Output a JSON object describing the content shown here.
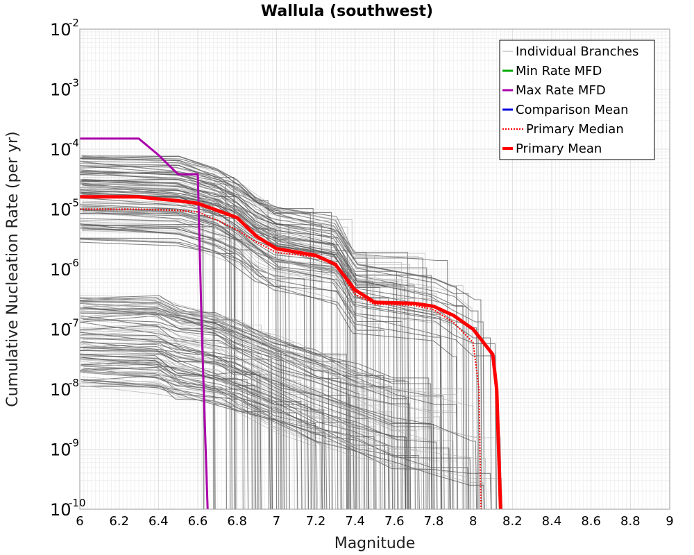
{
  "chart_data": {
    "type": "line",
    "title": "Wallula (southwest)",
    "xlabel": "Magnitude",
    "ylabel": "Cumulative Nucleation Rate (per yr)",
    "xlim": [
      6,
      9
    ],
    "ylim": [
      1e-10,
      0.01
    ],
    "y_scale": "log",
    "grid": true,
    "legend_position": "top-right",
    "x_ticks": [
      "6",
      "6.2",
      "6.4",
      "6.6",
      "6.8",
      "7",
      "7.2",
      "7.4",
      "7.6",
      "7.8",
      "8",
      "8.2",
      "8.4",
      "8.6",
      "8.8",
      "9"
    ],
    "y_ticks": [
      {
        "base": "10",
        "exp": "-2",
        "value": 0.01
      },
      {
        "base": "10",
        "exp": "-3",
        "value": 0.001
      },
      {
        "base": "10",
        "exp": "-4",
        "value": 0.0001
      },
      {
        "base": "10",
        "exp": "-5",
        "value": 1e-05
      },
      {
        "base": "10",
        "exp": "-6",
        "value": 1e-06
      },
      {
        "base": "10",
        "exp": "-7",
        "value": 1e-07
      },
      {
        "base": "10",
        "exp": "-8",
        "value": 1e-08
      },
      {
        "base": "10",
        "exp": "-9",
        "value": 1e-09
      },
      {
        "base": "10",
        "exp": "-10",
        "value": 1e-10
      }
    ],
    "series": [
      {
        "name": "Individual Branches",
        "color": "#aaaaaa",
        "style": "thin",
        "x": [],
        "y": []
      },
      {
        "name": "Min Rate MFD",
        "color": "#00aa00",
        "style": "solid",
        "x": [],
        "y": []
      },
      {
        "name": "Max Rate MFD",
        "color": "#aa00aa",
        "style": "solid",
        "x": [
          6.0,
          6.3,
          6.4,
          6.5,
          6.6,
          6.62,
          6.65
        ],
        "y": [
          0.00015,
          0.00015,
          8e-05,
          3.8e-05,
          3.8e-05,
          1e-07,
          1e-10
        ]
      },
      {
        "name": "Comparison Mean",
        "color": "#0000dd",
        "style": "solid",
        "x": [],
        "y": []
      },
      {
        "name": "Primary Median",
        "color": "#ff0000",
        "style": "dotted",
        "x": [
          6.0,
          6.3,
          6.5,
          6.6,
          6.7,
          6.8,
          6.9,
          7.0,
          7.2,
          7.3,
          7.4,
          7.5,
          7.7,
          7.8,
          7.9,
          8.0,
          8.03,
          8.04
        ],
        "y": [
          1e-05,
          1e-05,
          9.5e-06,
          9e-06,
          6.5e-06,
          4.5e-06,
          2.8e-06,
          1.9e-06,
          1.6e-06,
          1.2e-06,
          3.8e-07,
          2.6e-07,
          2.5e-07,
          2.1e-07,
          1.3e-07,
          6e-08,
          1e-08,
          1e-10
        ]
      },
      {
        "name": "Primary Mean",
        "color": "#ff0000",
        "style": "thick",
        "x": [
          6.0,
          6.3,
          6.4,
          6.5,
          6.6,
          6.7,
          6.8,
          6.9,
          7.0,
          7.2,
          7.3,
          7.4,
          7.5,
          7.7,
          7.8,
          7.9,
          8.0,
          8.1,
          8.12,
          8.14
        ],
        "y": [
          1.6e-05,
          1.6e-05,
          1.48e-05,
          1.38e-05,
          1.25e-05,
          9.5e-06,
          7.2e-06,
          3.5e-06,
          2.2e-06,
          1.7e-06,
          1.2e-06,
          4.5e-07,
          2.8e-07,
          2.7e-07,
          2.4e-07,
          1.7e-07,
          1e-07,
          3.8e-08,
          1e-08,
          1e-10
        ]
      }
    ]
  }
}
